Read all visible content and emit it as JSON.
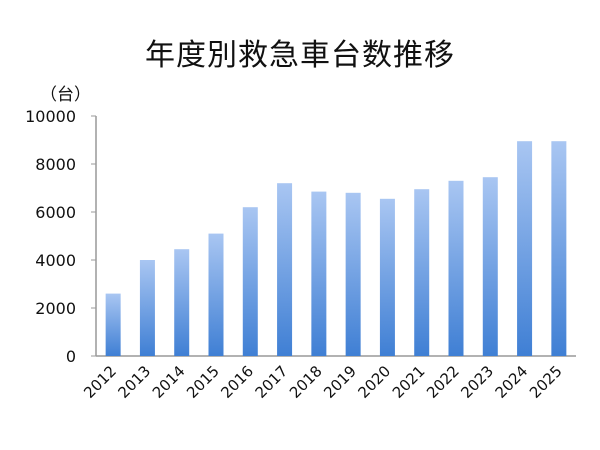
{
  "chart_data": {
    "type": "bar",
    "title": "年度別救急車台数推移",
    "unit_label": "（台）",
    "xlabel": "",
    "ylabel": "",
    "ylim": [
      0,
      10000
    ],
    "yticks": [
      0,
      2000,
      4000,
      6000,
      8000,
      10000
    ],
    "grid": false,
    "legend": "none",
    "categories": [
      "2012",
      "2013",
      "2014",
      "2015",
      "2016",
      "2017",
      "2018",
      "2019",
      "2020",
      "2021",
      "2022",
      "2023",
      "2024",
      "2025"
    ],
    "values": [
      2600,
      4000,
      4450,
      5100,
      6200,
      7200,
      6850,
      6800,
      6550,
      6950,
      7300,
      7450,
      8950,
      8950
    ],
    "bar_color_top": "#a9c6f2",
    "bar_color_bottom": "#3f7fd4"
  }
}
